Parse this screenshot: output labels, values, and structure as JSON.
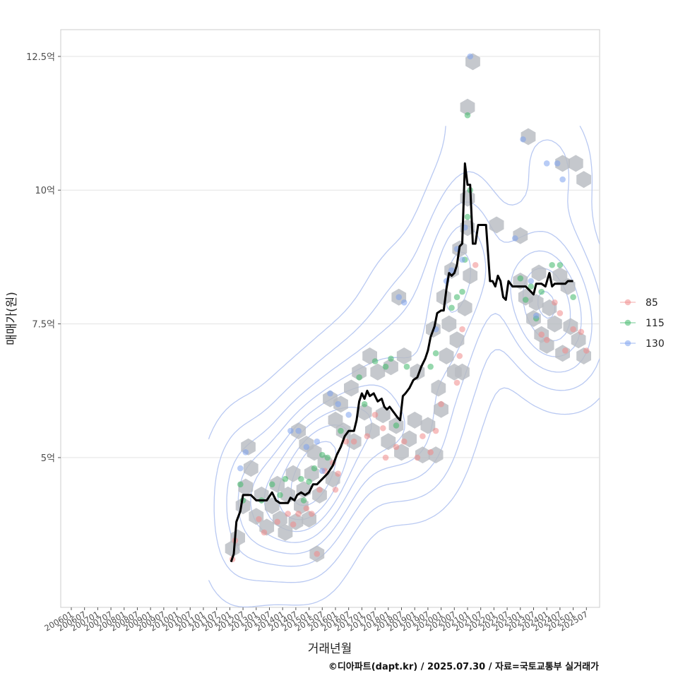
{
  "chart_data": {
    "type": "scatter",
    "xlabel": "거래년월",
    "ylabel": "매매가(원)",
    "caption": "©디아파트(dapt.kr) / 2025.07.30 / 자료=국토교통부 실거래가",
    "x_ticks": [
      "200601",
      "200607",
      "200701",
      "200707",
      "200801",
      "200807",
      "200901",
      "200907",
      "201001",
      "201007",
      "201101",
      "201107",
      "201201",
      "201207",
      "201301",
      "201307",
      "201401",
      "201407",
      "201501",
      "201507",
      "201601",
      "201607",
      "201701",
      "201707",
      "201801",
      "201807",
      "201901",
      "201907",
      "202001",
      "202007",
      "202101",
      "202107",
      "202201",
      "202207",
      "202301",
      "202307",
      "202401",
      "202407",
      "202501",
      "202507"
    ],
    "y_ticks": [
      {
        "value": 5,
        "label": "5억"
      },
      {
        "value": 7.5,
        "label": "7.5억"
      },
      {
        "value": 10,
        "label": "10억"
      },
      {
        "value": 12.5,
        "label": "12.5억"
      }
    ],
    "ylim": [
      2.2,
      13.0
    ],
    "x_range": [
      2005.6,
      2026.0
    ],
    "grid": true,
    "legend_position": "right",
    "colors": {
      "85": "#f08a8a",
      "115": "#3fb86a",
      "130": "#7ea3ee",
      "hex": "#b8bcc2",
      "contour": "#b9c9f2",
      "line": "#000000"
    },
    "series": [
      {
        "name": "85",
        "points": [
          [
            2012.1,
            3.1
          ],
          [
            2012.2,
            3.45
          ],
          [
            2013.1,
            3.85
          ],
          [
            2013.3,
            3.6
          ],
          [
            2013.8,
            3.8
          ],
          [
            2014.2,
            3.95
          ],
          [
            2014.4,
            3.75
          ],
          [
            2014.6,
            3.95
          ],
          [
            2014.9,
            4.05
          ],
          [
            2015.1,
            3.95
          ],
          [
            2015.3,
            3.2
          ],
          [
            2015.4,
            4.4
          ],
          [
            2015.6,
            4.75
          ],
          [
            2015.9,
            4.9
          ],
          [
            2016.0,
            4.4
          ],
          [
            2016.1,
            4.7
          ],
          [
            2016.4,
            5.3
          ],
          [
            2016.7,
            5.3
          ],
          [
            2017.2,
            5.4
          ],
          [
            2017.5,
            5.8
          ],
          [
            2017.8,
            5.55
          ],
          [
            2017.9,
            5.0
          ],
          [
            2018.3,
            5.2
          ],
          [
            2018.6,
            5.3
          ],
          [
            2019.1,
            5.0
          ],
          [
            2019.3,
            5.4
          ],
          [
            2019.6,
            5.1
          ],
          [
            2019.8,
            5.5
          ],
          [
            2020.0,
            6.0
          ],
          [
            2020.6,
            6.4
          ],
          [
            2020.7,
            6.9
          ],
          [
            2020.8,
            7.4
          ],
          [
            2021.3,
            8.6
          ],
          [
            2023.8,
            7.3
          ],
          [
            2024.0,
            7.2
          ],
          [
            2024.3,
            7.9
          ],
          [
            2024.5,
            7.7
          ],
          [
            2024.7,
            7.0
          ],
          [
            2025.0,
            7.4
          ],
          [
            2025.3,
            7.35
          ],
          [
            2025.5,
            7.0
          ]
        ]
      },
      {
        "name": "115",
        "points": [
          [
            2012.4,
            4.5
          ],
          [
            2012.5,
            4.2
          ],
          [
            2013.2,
            4.2
          ],
          [
            2013.6,
            4.5
          ],
          [
            2013.9,
            4.3
          ],
          [
            2014.1,
            4.6
          ],
          [
            2014.7,
            4.6
          ],
          [
            2014.8,
            4.2
          ],
          [
            2015.0,
            4.55
          ],
          [
            2015.2,
            4.8
          ],
          [
            2015.5,
            5.05
          ],
          [
            2015.7,
            5.0
          ],
          [
            2016.2,
            5.5
          ],
          [
            2016.9,
            6.5
          ],
          [
            2017.1,
            6.0
          ],
          [
            2017.5,
            6.8
          ],
          [
            2017.9,
            6.7
          ],
          [
            2018.1,
            6.85
          ],
          [
            2018.3,
            5.6
          ],
          [
            2018.7,
            6.7
          ],
          [
            2019.6,
            6.7
          ],
          [
            2019.8,
            6.95
          ],
          [
            2020.4,
            7.8
          ],
          [
            2020.6,
            8.0
          ],
          [
            2020.8,
            8.1
          ],
          [
            2020.9,
            8.7
          ],
          [
            2021.0,
            9.5
          ],
          [
            2021.1,
            10.0
          ],
          [
            2021.0,
            11.4
          ],
          [
            2023.0,
            8.35
          ],
          [
            2023.2,
            7.95
          ],
          [
            2023.4,
            8.2
          ],
          [
            2023.6,
            7.6
          ],
          [
            2023.8,
            8.1
          ],
          [
            2024.2,
            8.6
          ],
          [
            2024.5,
            8.6
          ],
          [
            2025.0,
            8.0
          ]
        ]
      },
      {
        "name": "130",
        "points": [
          [
            2012.4,
            4.8
          ],
          [
            2012.6,
            5.1
          ],
          [
            2014.3,
            5.5
          ],
          [
            2014.6,
            5.5
          ],
          [
            2014.9,
            5.2
          ],
          [
            2015.3,
            5.3
          ],
          [
            2015.5,
            4.75
          ],
          [
            2015.8,
            6.2
          ],
          [
            2016.1,
            6.0
          ],
          [
            2016.5,
            5.8
          ],
          [
            2018.4,
            8.0
          ],
          [
            2018.6,
            7.9
          ],
          [
            2019.8,
            7.4
          ],
          [
            2020.2,
            8.3
          ],
          [
            2020.4,
            8.5
          ],
          [
            2020.6,
            8.9
          ],
          [
            2020.8,
            8.7
          ],
          [
            2020.9,
            9.3
          ],
          [
            2021.1,
            12.5
          ],
          [
            2022.8,
            9.1
          ],
          [
            2023.1,
            10.95
          ],
          [
            2023.4,
            8.3
          ],
          [
            2023.6,
            7.65
          ],
          [
            2024.0,
            10.5
          ],
          [
            2024.4,
            10.5
          ],
          [
            2024.6,
            10.2
          ]
        ]
      }
    ],
    "hexbins": [
      [
        2012.1,
        3.3
      ],
      [
        2012.3,
        3.5
      ],
      [
        2012.5,
        4.1
      ],
      [
        2012.6,
        4.45
      ],
      [
        2012.7,
        5.2
      ],
      [
        2012.8,
        4.8
      ],
      [
        2013.0,
        3.9
      ],
      [
        2013.2,
        4.3
      ],
      [
        2013.4,
        3.7
      ],
      [
        2013.6,
        4.1
      ],
      [
        2013.8,
        4.5
      ],
      [
        2013.9,
        3.85
      ],
      [
        2014.1,
        3.6
      ],
      [
        2014.2,
        4.3
      ],
      [
        2014.4,
        4.7
      ],
      [
        2014.5,
        3.8
      ],
      [
        2014.6,
        5.5
      ],
      [
        2014.7,
        4.1
      ],
      [
        2014.8,
        4.4
      ],
      [
        2014.9,
        5.25
      ],
      [
        2015.0,
        3.85
      ],
      [
        2015.1,
        4.7
      ],
      [
        2015.2,
        5.1
      ],
      [
        2015.3,
        3.2
      ],
      [
        2015.4,
        4.3
      ],
      [
        2015.6,
        4.9
      ],
      [
        2015.8,
        6.1
      ],
      [
        2015.9,
        4.6
      ],
      [
        2016.0,
        5.7
      ],
      [
        2016.2,
        6.0
      ],
      [
        2016.3,
        5.5
      ],
      [
        2016.6,
        6.3
      ],
      [
        2016.7,
        5.3
      ],
      [
        2016.9,
        6.6
      ],
      [
        2017.1,
        5.85
      ],
      [
        2017.3,
        6.9
      ],
      [
        2017.4,
        5.5
      ],
      [
        2017.6,
        6.6
      ],
      [
        2017.8,
        5.8
      ],
      [
        2018.0,
        5.3
      ],
      [
        2018.1,
        6.7
      ],
      [
        2018.3,
        5.6
      ],
      [
        2018.4,
        8.0
      ],
      [
        2018.5,
        5.1
      ],
      [
        2018.6,
        6.9
      ],
      [
        2018.8,
        5.35
      ],
      [
        2019.0,
        5.7
      ],
      [
        2019.1,
        6.6
      ],
      [
        2019.3,
        5.05
      ],
      [
        2019.5,
        5.6
      ],
      [
        2019.7,
        7.4
      ],
      [
        2019.8,
        5.05
      ],
      [
        2019.9,
        6.3
      ],
      [
        2020.0,
        5.9
      ],
      [
        2020.1,
        8.0
      ],
      [
        2020.2,
        6.9
      ],
      [
        2020.3,
        7.5
      ],
      [
        2020.4,
        8.5
      ],
      [
        2020.5,
        6.6
      ],
      [
        2020.6,
        7.2
      ],
      [
        2020.7,
        8.9
      ],
      [
        2020.8,
        6.6
      ],
      [
        2020.9,
        7.8
      ],
      [
        2021.0,
        9.3
      ],
      [
        2021.0,
        9.85
      ],
      [
        2021.0,
        11.55
      ],
      [
        2021.1,
        8.4
      ],
      [
        2021.2,
        12.4
      ],
      [
        2022.1,
        9.35
      ],
      [
        2023.0,
        9.15
      ],
      [
        2023.3,
        11.0
      ],
      [
        2023.0,
        8.3
      ],
      [
        2023.2,
        8.0
      ],
      [
        2023.5,
        7.6
      ],
      [
        2023.6,
        7.9
      ],
      [
        2023.7,
        8.45
      ],
      [
        2023.8,
        7.3
      ],
      [
        2024.0,
        7.1
      ],
      [
        2024.1,
        7.8
      ],
      [
        2024.3,
        7.5
      ],
      [
        2024.5,
        8.4
      ],
      [
        2024.6,
        6.95
      ],
      [
        2024.8,
        8.2
      ],
      [
        2024.9,
        7.45
      ],
      [
        2025.2,
        7.2
      ],
      [
        2025.4,
        6.9
      ],
      [
        2024.6,
        10.5
      ],
      [
        2025.1,
        10.5
      ],
      [
        2025.4,
        10.2
      ]
    ],
    "median_line": [
      [
        2012.05,
        3.05
      ],
      [
        2012.15,
        3.2
      ],
      [
        2012.25,
        3.8
      ],
      [
        2012.4,
        4.0
      ],
      [
        2012.5,
        4.3
      ],
      [
        2012.8,
        4.3
      ],
      [
        2013.0,
        4.2
      ],
      [
        2013.4,
        4.2
      ],
      [
        2013.6,
        4.35
      ],
      [
        2013.75,
        4.2
      ],
      [
        2013.9,
        4.15
      ],
      [
        2014.2,
        4.15
      ],
      [
        2014.3,
        4.25
      ],
      [
        2014.45,
        4.2
      ],
      [
        2014.55,
        4.3
      ],
      [
        2014.7,
        4.35
      ],
      [
        2014.85,
        4.3
      ],
      [
        2015.0,
        4.35
      ],
      [
        2015.15,
        4.5
      ],
      [
        2015.3,
        4.5
      ],
      [
        2015.5,
        4.6
      ],
      [
        2015.7,
        4.7
      ],
      [
        2015.9,
        4.85
      ],
      [
        2016.05,
        5.05
      ],
      [
        2016.2,
        5.2
      ],
      [
        2016.35,
        5.4
      ],
      [
        2016.5,
        5.5
      ],
      [
        2016.7,
        5.5
      ],
      [
        2016.8,
        5.7
      ],
      [
        2016.9,
        6.05
      ],
      [
        2017.0,
        6.2
      ],
      [
        2017.1,
        6.1
      ],
      [
        2017.2,
        6.25
      ],
      [
        2017.3,
        6.15
      ],
      [
        2017.45,
        6.2
      ],
      [
        2017.6,
        6.05
      ],
      [
        2017.75,
        6.1
      ],
      [
        2017.85,
        5.95
      ],
      [
        2017.95,
        5.9
      ],
      [
        2018.05,
        5.95
      ],
      [
        2018.2,
        5.85
      ],
      [
        2018.35,
        5.75
      ],
      [
        2018.45,
        5.7
      ],
      [
        2018.55,
        6.15
      ],
      [
        2018.65,
        6.2
      ],
      [
        2018.8,
        6.3
      ],
      [
        2018.95,
        6.45
      ],
      [
        2019.1,
        6.5
      ],
      [
        2019.25,
        6.7
      ],
      [
        2019.4,
        6.85
      ],
      [
        2019.5,
        7.0
      ],
      [
        2019.6,
        7.25
      ],
      [
        2019.75,
        7.45
      ],
      [
        2019.85,
        7.7
      ],
      [
        2020.0,
        7.75
      ],
      [
        2020.1,
        7.75
      ],
      [
        2020.2,
        8.15
      ],
      [
        2020.3,
        8.45
      ],
      [
        2020.4,
        8.4
      ],
      [
        2020.5,
        8.45
      ],
      [
        2020.6,
        8.6
      ],
      [
        2020.7,
        8.95
      ],
      [
        2020.8,
        9.0
      ],
      [
        2020.9,
        10.5
      ],
      [
        2021.0,
        10.1
      ],
      [
        2021.1,
        10.1
      ],
      [
        2021.2,
        9.0
      ],
      [
        2021.3,
        9.0
      ],
      [
        2021.4,
        9.35
      ],
      [
        2021.7,
        9.35
      ],
      [
        2021.85,
        8.3
      ],
      [
        2021.95,
        8.3
      ],
      [
        2022.05,
        8.2
      ],
      [
        2022.15,
        8.4
      ],
      [
        2022.25,
        8.3
      ],
      [
        2022.35,
        8.0
      ],
      [
        2022.45,
        7.95
      ],
      [
        2022.55,
        8.3
      ],
      [
        2022.7,
        8.2
      ],
      [
        2023.2,
        8.2
      ],
      [
        2023.3,
        8.15
      ],
      [
        2023.4,
        8.1
      ],
      [
        2023.5,
        8.05
      ],
      [
        2023.6,
        8.25
      ],
      [
        2023.8,
        8.25
      ],
      [
        2023.95,
        8.2
      ],
      [
        2024.1,
        8.45
      ],
      [
        2024.2,
        8.2
      ],
      [
        2024.3,
        8.25
      ],
      [
        2024.7,
        8.25
      ],
      [
        2024.8,
        8.3
      ],
      [
        2025.0,
        8.3
      ]
    ]
  }
}
